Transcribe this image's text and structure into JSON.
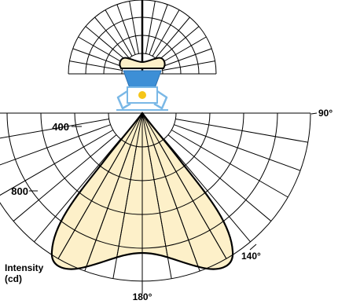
{
  "diagram": {
    "labels": {
      "angle_90": "90°",
      "angle_140": "140°",
      "angle_180": "180°",
      "radius_400": "400",
      "radius_800": "800",
      "intensity_line1": "Intensity",
      "intensity_line2": "(cd)"
    },
    "colors": {
      "distribution_fill": "#fdf0c9",
      "lamp_head": "#3d8fd6",
      "lamp_frame": "#7ab8e6",
      "lamp_light": "#f5c518",
      "grid": "#000000"
    },
    "lamp_icon": "floodlight-icon"
  }
}
